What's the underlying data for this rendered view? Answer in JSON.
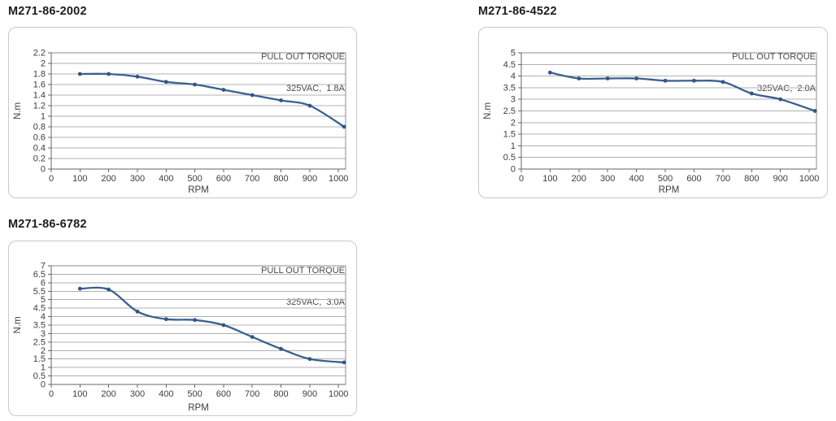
{
  "style": {
    "line_color": "#3a6090",
    "marker_color": "#315687",
    "grid_color": "#b0b0b0",
    "axis_color": "#666666",
    "box_color": "#8c8c8c",
    "tick_label_color": "#3d3d3d",
    "header_color": "#4a4a4a",
    "title_color": "#1c1c1c",
    "panel_border_color": "#c9c9c9",
    "background": "#ffffff"
  },
  "chart_data": [
    {
      "type": "line",
      "panel_title": "M271-86-2002",
      "header_line1": "PULL OUT TORQUE",
      "header_line2": "325VAC,  1.8A",
      "xlabel": "RPM",
      "ylabel": "N.m",
      "x": [
        100,
        200,
        300,
        400,
        500,
        600,
        700,
        800,
        900,
        1020
      ],
      "y": [
        1.8,
        1.8,
        1.75,
        1.65,
        1.6,
        1.5,
        1.4,
        1.3,
        1.2,
        0.8
      ],
      "xlim": [
        0,
        1025
      ],
      "ylim": [
        0,
        2.2
      ],
      "ytick_step": 0.2,
      "xticks": [
        0,
        100,
        200,
        300,
        400,
        500,
        600,
        700,
        800,
        900,
        1000
      ],
      "grid": "horizontal",
      "legend": "none"
    },
    {
      "type": "line",
      "panel_title": "M271-86-4522",
      "header_line1": "PULL OUT TORQUE",
      "header_line2": "325VAC,  2.0A",
      "xlabel": "RPM",
      "ylabel": "N.m",
      "x": [
        100,
        200,
        300,
        400,
        500,
        600,
        700,
        800,
        900,
        1020
      ],
      "y": [
        4.15,
        3.9,
        3.9,
        3.9,
        3.8,
        3.8,
        3.75,
        3.25,
        3.0,
        2.5
      ],
      "xlim": [
        0,
        1025
      ],
      "ylim": [
        0,
        5
      ],
      "ytick_step": 0.5,
      "xticks": [
        0,
        100,
        200,
        300,
        400,
        500,
        600,
        700,
        800,
        900,
        1000
      ],
      "grid": "horizontal",
      "legend": "none"
    },
    {
      "type": "line",
      "panel_title": "M271-86-6782",
      "header_line1": "PULL OUT TORQUE",
      "header_line2": "325VAC,  3.0A",
      "xlabel": "RPM",
      "ylabel": "N.m",
      "x": [
        100,
        200,
        300,
        400,
        500,
        600,
        700,
        800,
        900,
        1020
      ],
      "y": [
        5.65,
        5.6,
        4.3,
        3.85,
        3.8,
        3.5,
        2.8,
        2.1,
        1.5,
        1.3
      ],
      "xlim": [
        0,
        1025
      ],
      "ylim": [
        0,
        7
      ],
      "ytick_step": 0.5,
      "xticks": [
        0,
        100,
        200,
        300,
        400,
        500,
        600,
        700,
        800,
        900,
        1000
      ],
      "grid": "horizontal",
      "legend": "none"
    }
  ]
}
